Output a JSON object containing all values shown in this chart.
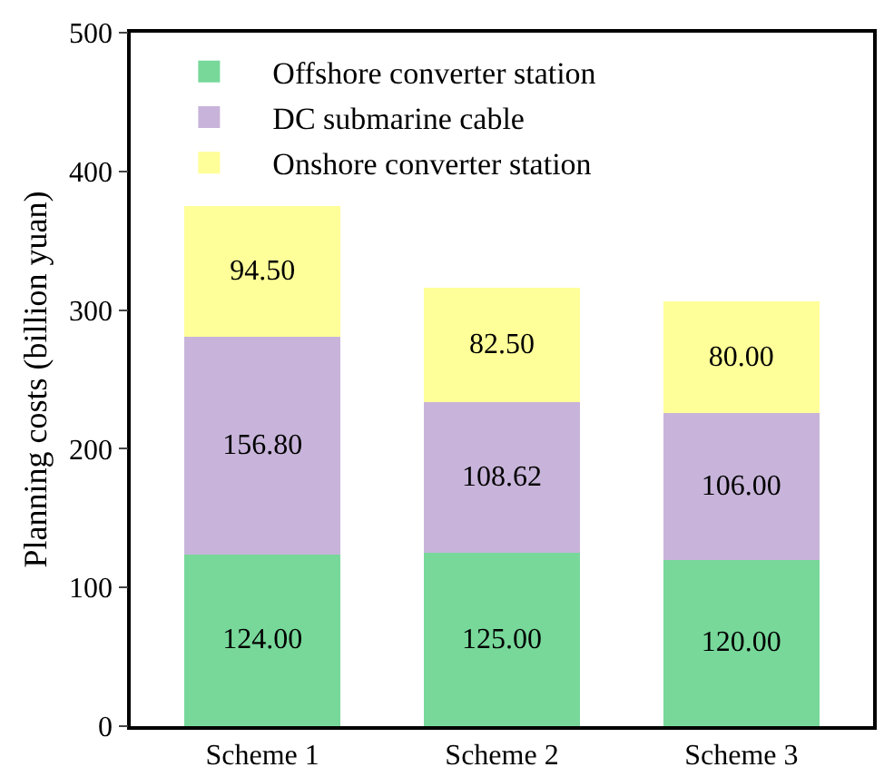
{
  "chart_data": {
    "type": "bar",
    "stacked": true,
    "ylabel": "Planning costs (billion yuan)",
    "categories": [
      "Scheme 1",
      "Scheme 2",
      "Scheme 3"
    ],
    "series": [
      {
        "name": "Offshore converter station",
        "color": "#77d89a",
        "values": [
          124.0,
          125.0,
          120.0
        ],
        "value_labels": [
          "124.00",
          "125.00",
          "120.00"
        ]
      },
      {
        "name": "DC submarine cable",
        "color": "#c8b4da",
        "values": [
          156.8,
          108.62,
          106.0
        ],
        "value_labels": [
          "156.80",
          "108.62",
          "106.00"
        ]
      },
      {
        "name": "Onshore converter station",
        "color": "#ffff99",
        "values": [
          94.5,
          82.5,
          80.0
        ],
        "value_labels": [
          "94.50",
          "82.50",
          "80.00"
        ]
      }
    ],
    "ylim": [
      0,
      500
    ],
    "yticks": [
      0,
      100,
      200,
      300,
      400,
      500
    ],
    "grid": false,
    "legend": "top left"
  }
}
